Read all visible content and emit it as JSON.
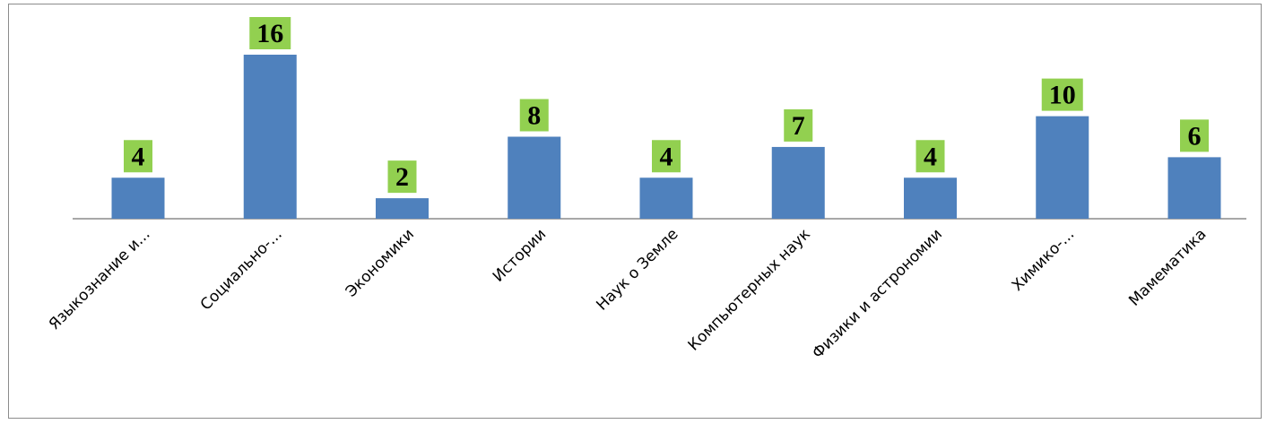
{
  "chart_data": {
    "type": "bar",
    "categories": [
      "Языкознание и...",
      "Социально-...",
      "Экономики",
      "Истории",
      "Наук о Земле",
      "Компьютерных наук",
      "Физики и астрономии",
      "Химико-...",
      "Мамематика"
    ],
    "values": [
      4,
      16,
      2,
      8,
      4,
      7,
      4,
      10,
      6
    ],
    "data_labels": [
      "4",
      "16",
      "2",
      "8",
      "4",
      "7",
      "4",
      "10",
      "6"
    ],
    "title": "",
    "xlabel": "",
    "ylabel": "",
    "ylim": [
      0,
      16
    ],
    "grid": false,
    "legend": "none",
    "colors": {
      "bar": "#4f81bd",
      "label_background": "#92d050",
      "axis": "#8c8c8c"
    }
  }
}
